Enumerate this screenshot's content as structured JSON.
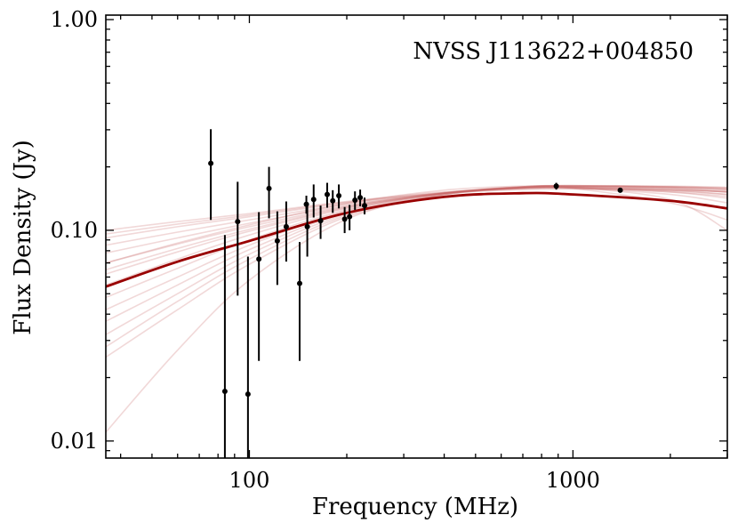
{
  "chart_data": {
    "type": "scatter",
    "title": "",
    "annotation": "NVSS J113622+004850",
    "xlabel": "Frequency (MHz)",
    "ylabel": "Flux Density (Jy)",
    "xscale": "log",
    "yscale": "log",
    "xlim": [
      36,
      3000
    ],
    "ylim": [
      0.0083,
      1.05
    ],
    "x_tick_labels": [
      {
        "value": 100,
        "label": "100"
      },
      {
        "value": 1000,
        "label": "1000"
      }
    ],
    "y_tick_labels": [
      {
        "value": 0.01,
        "label": "0.01"
      },
      {
        "value": 0.1,
        "label": "0.10"
      },
      {
        "value": 1.0,
        "label": "1.00"
      }
    ],
    "colors": {
      "data": "#000000",
      "best_fit": "#990000",
      "samples": "#c86464"
    },
    "points": [
      {
        "x": 76,
        "y": 0.208,
        "ylo": 0.112,
        "yhi": 0.302
      },
      {
        "x": 84,
        "y": 0.0172,
        "ylo": 0.0083,
        "yhi": 0.095
      },
      {
        "x": 92,
        "y": 0.11,
        "ylo": 0.049,
        "yhi": 0.17
      },
      {
        "x": 99,
        "y": 0.0167,
        "ylo": 0.0083,
        "yhi": 0.075
      },
      {
        "x": 107,
        "y": 0.073,
        "ylo": 0.024,
        "yhi": 0.122
      },
      {
        "x": 115,
        "y": 0.158,
        "ylo": 0.114,
        "yhi": 0.2
      },
      {
        "x": 122,
        "y": 0.089,
        "ylo": 0.055,
        "yhi": 0.123
      },
      {
        "x": 130,
        "y": 0.104,
        "ylo": 0.071,
        "yhi": 0.137
      },
      {
        "x": 143,
        "y": 0.056,
        "ylo": 0.024,
        "yhi": 0.088
      },
      {
        "x": 150,
        "y": 0.133,
        "ylo": 0.12,
        "yhi": 0.146
      },
      {
        "x": 151,
        "y": 0.104,
        "ylo": 0.075,
        "yhi": 0.133
      },
      {
        "x": 158,
        "y": 0.14,
        "ylo": 0.115,
        "yhi": 0.165
      },
      {
        "x": 166,
        "y": 0.111,
        "ylo": 0.091,
        "yhi": 0.131
      },
      {
        "x": 174,
        "y": 0.148,
        "ylo": 0.128,
        "yhi": 0.168
      },
      {
        "x": 181,
        "y": 0.138,
        "ylo": 0.121,
        "yhi": 0.155
      },
      {
        "x": 189,
        "y": 0.146,
        "ylo": 0.127,
        "yhi": 0.165
      },
      {
        "x": 197,
        "y": 0.113,
        "ylo": 0.097,
        "yhi": 0.129
      },
      {
        "x": 204,
        "y": 0.116,
        "ylo": 0.1,
        "yhi": 0.132
      },
      {
        "x": 212,
        "y": 0.139,
        "ylo": 0.125,
        "yhi": 0.153
      },
      {
        "x": 220,
        "y": 0.143,
        "ylo": 0.13,
        "yhi": 0.156
      },
      {
        "x": 227,
        "y": 0.131,
        "ylo": 0.119,
        "yhi": 0.143
      },
      {
        "x": 888,
        "y": 0.162,
        "ylo": 0.156,
        "yhi": 0.168
      },
      {
        "x": 1400,
        "y": 0.155,
        "ylo": 0.151,
        "yhi": 0.159
      }
    ],
    "series": [
      {
        "name": "best fit",
        "style": "thick",
        "x": [
          36,
          60,
          100,
          200,
          400,
          700,
          1000,
          2000,
          3000
        ],
        "y": [
          0.054,
          0.071,
          0.089,
          0.121,
          0.144,
          0.15,
          0.148,
          0.138,
          0.127
        ]
      },
      {
        "name": "sample 1",
        "style": "faint",
        "x": [
          36,
          60,
          100,
          200,
          400,
          700,
          1000,
          2000,
          3000
        ],
        "y": [
          0.1,
          0.11,
          0.12,
          0.137,
          0.152,
          0.158,
          0.158,
          0.152,
          0.145
        ]
      },
      {
        "name": "sample 2",
        "style": "faint",
        "x": [
          36,
          60,
          100,
          200,
          400,
          700,
          1000,
          2000,
          3000
        ],
        "y": [
          0.092,
          0.104,
          0.116,
          0.135,
          0.151,
          0.159,
          0.159,
          0.154,
          0.148
        ]
      },
      {
        "name": "sample 3",
        "style": "faint",
        "x": [
          36,
          60,
          100,
          200,
          400,
          700,
          1000,
          2000,
          3000
        ],
        "y": [
          0.085,
          0.098,
          0.112,
          0.133,
          0.15,
          0.158,
          0.16,
          0.157,
          0.152
        ]
      },
      {
        "name": "sample 4",
        "style": "faint",
        "x": [
          36,
          60,
          100,
          200,
          400,
          700,
          1000,
          2000,
          3000
        ],
        "y": [
          0.078,
          0.092,
          0.108,
          0.131,
          0.15,
          0.159,
          0.161,
          0.159,
          0.155
        ]
      },
      {
        "name": "sample 5",
        "style": "faint",
        "x": [
          36,
          60,
          100,
          200,
          400,
          700,
          1000,
          2000,
          3000
        ],
        "y": [
          0.07,
          0.086,
          0.104,
          0.13,
          0.151,
          0.16,
          0.162,
          0.16,
          0.157
        ]
      },
      {
        "name": "sample 6",
        "style": "faint",
        "x": [
          36,
          60,
          100,
          200,
          400,
          700,
          1000,
          2000,
          3000
        ],
        "y": [
          0.062,
          0.079,
          0.099,
          0.128,
          0.15,
          0.16,
          0.162,
          0.161,
          0.158
        ]
      },
      {
        "name": "sample 7",
        "style": "faint",
        "x": [
          36,
          60,
          100,
          200,
          400,
          700,
          1000,
          2000,
          3000
        ],
        "y": [
          0.055,
          0.073,
          0.095,
          0.127,
          0.15,
          0.161,
          0.163,
          0.162,
          0.16
        ]
      },
      {
        "name": "sample 8",
        "style": "faint",
        "x": [
          36,
          60,
          100,
          200,
          400,
          700,
          1000,
          2000,
          3000
        ],
        "y": [
          0.048,
          0.066,
          0.09,
          0.125,
          0.15,
          0.161,
          0.163,
          0.161,
          0.159
        ]
      },
      {
        "name": "sample 9",
        "style": "faint",
        "x": [
          36,
          60,
          100,
          200,
          400,
          700,
          1000,
          2000,
          3000
        ],
        "y": [
          0.042,
          0.06,
          0.085,
          0.124,
          0.15,
          0.161,
          0.163,
          0.16,
          0.156
        ]
      },
      {
        "name": "sample 10",
        "style": "faint",
        "x": [
          36,
          60,
          100,
          200,
          400,
          700,
          1000,
          2000,
          3000
        ],
        "y": [
          0.037,
          0.055,
          0.081,
          0.122,
          0.149,
          0.16,
          0.162,
          0.158,
          0.152
        ]
      },
      {
        "name": "sample 11",
        "style": "faint",
        "x": [
          36,
          60,
          100,
          200,
          400,
          700,
          1000,
          2000,
          3000
        ],
        "y": [
          0.032,
          0.05,
          0.077,
          0.12,
          0.148,
          0.16,
          0.161,
          0.155,
          0.148
        ]
      },
      {
        "name": "sample 12",
        "style": "faint",
        "x": [
          36,
          60,
          100,
          200,
          400,
          700,
          1000,
          2000,
          3000
        ],
        "y": [
          0.028,
          0.046,
          0.073,
          0.118,
          0.148,
          0.159,
          0.16,
          0.152,
          0.142
        ]
      },
      {
        "name": "sample 13",
        "style": "faint",
        "x": [
          36,
          60,
          100,
          200,
          400,
          700,
          1000,
          2000,
          3000
        ],
        "y": [
          0.025,
          0.042,
          0.069,
          0.116,
          0.147,
          0.159,
          0.159,
          0.148,
          0.135
        ]
      },
      {
        "name": "sample 14",
        "style": "faint",
        "x": [
          36,
          60,
          100,
          200,
          400,
          700,
          1000,
          2000,
          3000
        ],
        "y": [
          0.011,
          0.027,
          0.058,
          0.113,
          0.148,
          0.16,
          0.158,
          0.135,
          0.112
        ]
      },
      {
        "name": "sample 15",
        "style": "faint",
        "x": [
          36,
          60,
          100,
          200,
          400,
          700,
          1000,
          2000,
          3000
        ],
        "y": [
          0.07,
          0.087,
          0.106,
          0.134,
          0.155,
          0.162,
          0.16,
          0.14,
          0.1
        ]
      },
      {
        "name": "sample 16",
        "style": "faint",
        "x": [
          36,
          60,
          100,
          200,
          400,
          700,
          1000,
          2000,
          3000
        ],
        "y": [
          0.096,
          0.107,
          0.118,
          0.136,
          0.15,
          0.156,
          0.157,
          0.155,
          0.153
        ]
      },
      {
        "name": "sample 17",
        "style": "faint",
        "x": [
          36,
          60,
          100,
          200,
          400,
          700,
          1000,
          2000,
          3000
        ],
        "y": [
          0.065,
          0.082,
          0.101,
          0.129,
          0.149,
          0.158,
          0.159,
          0.156,
          0.152
        ]
      }
    ]
  }
}
